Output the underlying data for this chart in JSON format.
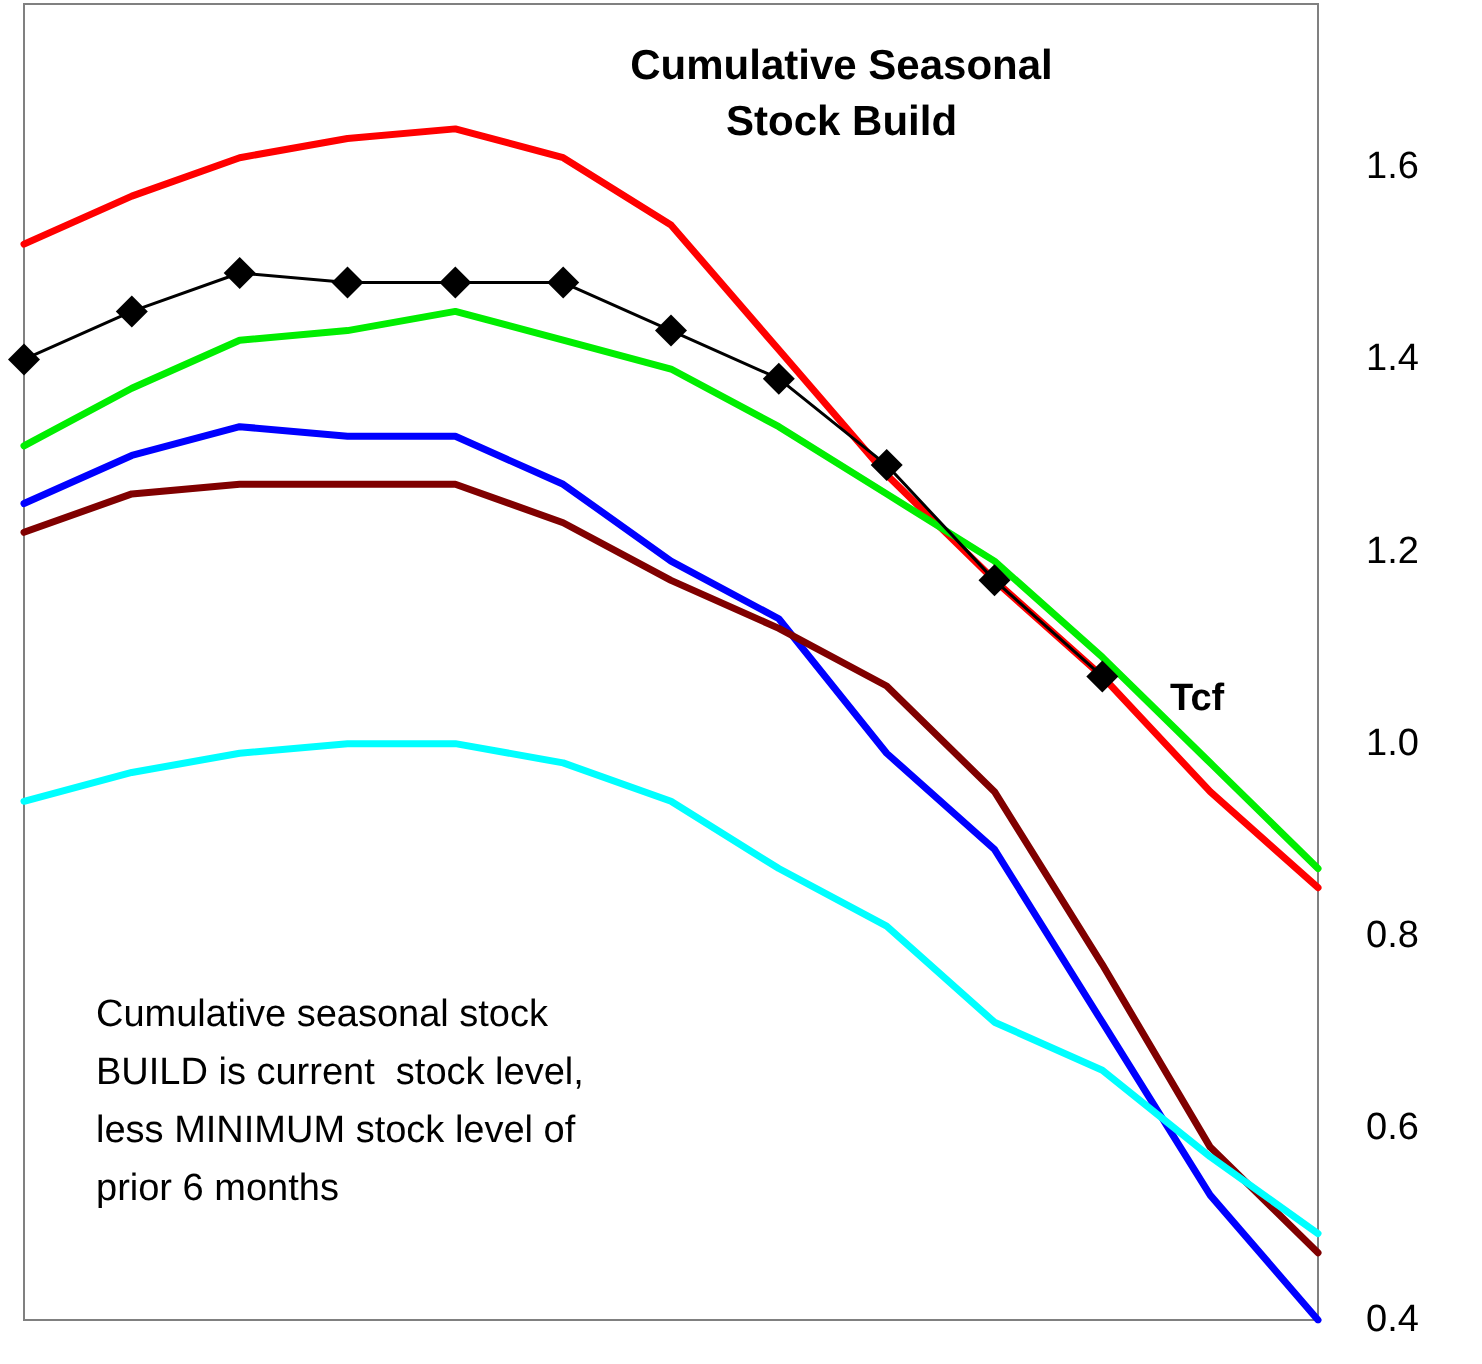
{
  "chart_data": {
    "type": "line",
    "title": "Cumulative Seasonal\nStock Build",
    "annotations": [
      "Tcf",
      "Cumulative seasonal stock\nBUILD is current  stock level,\nless MINIMUM stock level of\nprior 6 months"
    ],
    "categories": [
      null,
      null,
      null,
      null,
      null,
      null,
      null,
      null,
      null,
      null,
      null,
      null,
      null
    ],
    "series": [
      {
        "color": "#ff0000",
        "values": [
          1.52,
          1.57,
          1.61,
          1.63,
          1.64,
          1.61,
          1.54,
          1.41,
          1.28,
          1.17,
          1.07,
          0.95,
          0.85
        ]
      },
      {
        "color": "#00ee00",
        "values": [
          1.31,
          1.37,
          1.42,
          1.43,
          1.45,
          1.42,
          1.39,
          1.33,
          1.26,
          1.19,
          1.09,
          0.98,
          0.87
        ]
      },
      {
        "color": "#0000ff",
        "values": [
          1.25,
          1.3,
          1.33,
          1.32,
          1.32,
          1.27,
          1.19,
          1.13,
          0.99,
          0.89,
          0.71,
          0.53,
          0.4
        ]
      },
      {
        "color": "#800000",
        "values": [
          1.22,
          1.26,
          1.27,
          1.27,
          1.27,
          1.23,
          1.17,
          1.12,
          1.06,
          0.95,
          0.77,
          0.58,
          0.47
        ]
      },
      {
        "color": "#00ffff",
        "values": [
          0.94,
          0.97,
          0.99,
          1.0,
          1.0,
          0.98,
          0.94,
          0.87,
          0.81,
          0.71,
          0.66,
          0.57,
          0.49
        ]
      },
      {
        "color": "#000000",
        "marker": "diamond",
        "values": [
          1.4,
          1.45,
          1.49,
          1.48,
          1.48,
          1.48,
          1.43,
          1.38,
          1.29,
          1.17,
          1.07,
          null,
          null
        ]
      }
    ],
    "ylim": [
      0.4,
      1.77
    ],
    "yticks": [
      0.4,
      0.6,
      0.8,
      {
        "value": 1,
        "label": "1.0"
      },
      1.2,
      1.4,
      1.6
    ],
    "grid": false,
    "marker": "none"
  }
}
